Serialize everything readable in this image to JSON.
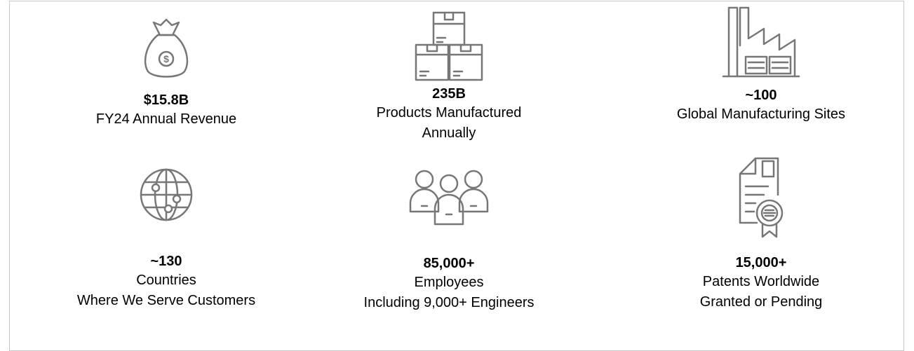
{
  "items": [
    {
      "value": "$15.8B",
      "lines": [
        "FY24 Annual Revenue"
      ]
    },
    {
      "value": "235B",
      "lines": [
        "Products Manufactured",
        "Annually"
      ]
    },
    {
      "value": "~100",
      "lines": [
        "Global Manufacturing Sites"
      ]
    },
    {
      "value": "~130",
      "lines": [
        "Countries",
        "Where We Serve Customers"
      ]
    },
    {
      "value": "85,000+",
      "lines": [
        "Employees",
        "Including 9,000+ Engineers"
      ]
    },
    {
      "value": "15,000+",
      "lines": [
        "Patents Worldwide",
        "Granted or Pending"
      ]
    }
  ]
}
